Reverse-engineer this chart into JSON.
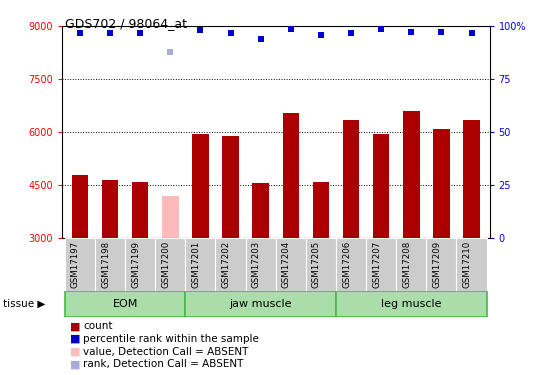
{
  "title": "GDS702 / 98064_at",
  "samples": [
    "GSM17197",
    "GSM17198",
    "GSM17199",
    "GSM17200",
    "GSM17201",
    "GSM17202",
    "GSM17203",
    "GSM17204",
    "GSM17205",
    "GSM17206",
    "GSM17207",
    "GSM17208",
    "GSM17209",
    "GSM17210"
  ],
  "bar_values": [
    4800,
    4650,
    4580,
    4200,
    5950,
    5900,
    4550,
    6550,
    4600,
    6350,
    5950,
    6600,
    6100,
    6350
  ],
  "bar_absent": [
    false,
    false,
    false,
    true,
    false,
    false,
    false,
    false,
    false,
    false,
    false,
    false,
    false,
    false
  ],
  "rank_values": [
    97,
    97,
    97,
    88,
    98,
    97,
    94,
    98.5,
    96,
    97,
    98.5,
    97.5,
    97.5,
    97
  ],
  "rank_absent": [
    false,
    false,
    false,
    true,
    false,
    false,
    false,
    false,
    false,
    false,
    false,
    false,
    false,
    false
  ],
  "groups": [
    {
      "label": "EOM",
      "start": 0,
      "end": 4
    },
    {
      "label": "jaw muscle",
      "start": 4,
      "end": 9
    },
    {
      "label": "leg muscle",
      "start": 9,
      "end": 14
    }
  ],
  "ylim_left": [
    3000,
    9000
  ],
  "ylim_right": [
    0,
    100
  ],
  "yticks_left": [
    3000,
    4500,
    6000,
    7500,
    9000
  ],
  "yticks_right": [
    0,
    25,
    50,
    75,
    100
  ],
  "bar_color_normal": "#aa0000",
  "bar_color_absent": "#ffbbbb",
  "rank_color_normal": "#0000cc",
  "rank_color_absent": "#aaaadd",
  "group_light_color": "#aaddaa",
  "group_edge_color": "#44bb44",
  "xtick_bg_color": "#cccccc",
  "legend_items": [
    {
      "label": "count",
      "color": "#aa0000"
    },
    {
      "label": "percentile rank within the sample",
      "color": "#0000cc"
    },
    {
      "label": "value, Detection Call = ABSENT",
      "color": "#ffbbbb"
    },
    {
      "label": "rank, Detection Call = ABSENT",
      "color": "#aaaadd"
    }
  ],
  "tissue_label": "tissue"
}
